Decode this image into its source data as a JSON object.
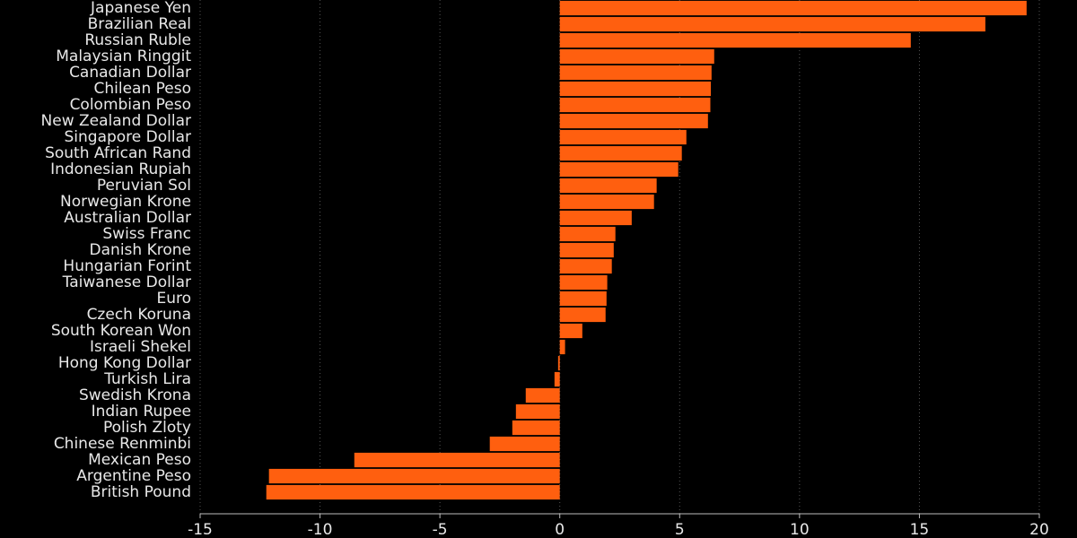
{
  "chart_data": {
    "type": "barh",
    "categories": [
      "Japanese Yen",
      "Brazilian Real",
      "Russian Ruble",
      "Malaysian Ringgit",
      "Canadian Dollar",
      "Chilean Peso",
      "Colombian Peso",
      "New Zealand Dollar",
      "Singapore Dollar",
      "South African Rand",
      "Indonesian Rupiah",
      "Peruvian Sol",
      "Norwegian Krone",
      "Australian Dollar",
      "Swiss Franc",
      "Danish Krone",
      "Hungarian Forint",
      "Taiwanese Dollar",
      "Euro",
      "Czech Koruna",
      "South Korean Won",
      "Israeli Shekel",
      "Hong Kong Dollar",
      "Turkish Lira",
      "Swedish Krona",
      "Indian Rupee",
      "Polish Zloty",
      "Chinese Renminbi",
      "Mexican Peso",
      "Argentine Peso",
      "British Pound"
    ],
    "values": [
      19.47,
      17.75,
      14.64,
      6.44,
      6.33,
      6.3,
      6.28,
      6.18,
      5.28,
      5.09,
      4.94,
      4.04,
      3.93,
      3.0,
      2.32,
      2.25,
      2.17,
      1.98,
      1.95,
      1.91,
      0.94,
      0.22,
      -0.07,
      -0.22,
      -1.42,
      -1.83,
      -1.98,
      -2.92,
      -8.57,
      -12.13,
      -12.24
    ],
    "color": "#ff5f0f",
    "xlim": [
      -15,
      20
    ],
    "xticks": [
      -15,
      -10,
      -5,
      0,
      5,
      10,
      15,
      20
    ],
    "grid": true
  }
}
